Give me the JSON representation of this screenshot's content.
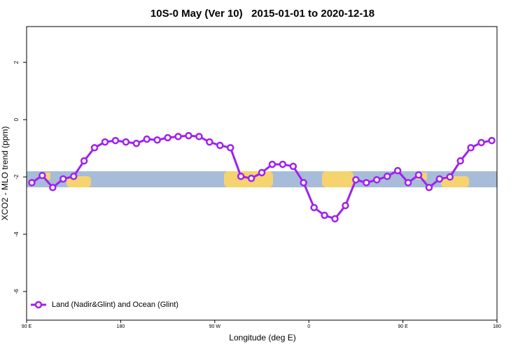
{
  "chart_data": {
    "type": "line",
    "title": "10S-0 May (Ver 10)   2015-01-01 to 2020-12-18",
    "xlabel": "Longitude (deg E)",
    "ylabel": "XCO2 - MLO trend (ppm)",
    "x": [
      95,
      105,
      115,
      125,
      135,
      145,
      155,
      165,
      175,
      185,
      195,
      205,
      215,
      225,
      235,
      245,
      255,
      265,
      275,
      285,
      295,
      305,
      315,
      325,
      335,
      345,
      355,
      365,
      375,
      385,
      395,
      405,
      415,
      425,
      435,
      445,
      455,
      465,
      475,
      485,
      495,
      505,
      515,
      525,
      535
    ],
    "series": [
      {
        "name": "Land (Nadir&Glint) and Ocean (Glint)",
        "color": "#a020f0",
        "values": [
          -2.2,
          -1.95,
          -2.37,
          -2.07,
          -1.98,
          -1.44,
          -0.98,
          -0.78,
          -0.73,
          -0.78,
          -0.83,
          -0.68,
          -0.71,
          -0.63,
          -0.59,
          -0.56,
          -0.59,
          -0.78,
          -0.9,
          -0.98,
          -1.98,
          -2.05,
          -1.85,
          -1.56,
          -1.56,
          -1.63,
          -2.2,
          -3.07,
          -3.34,
          -3.46,
          -3.0,
          -2.1,
          -2.2,
          -2.1,
          -1.98,
          -1.78,
          -2.2,
          -1.93,
          -2.37,
          -2.07,
          -2.0,
          -1.44,
          -0.98,
          -0.8,
          -0.73
        ]
      }
    ],
    "xlim": [
      90,
      540
    ],
    "xticks": [
      {
        "value": 90,
        "label": "90 E"
      },
      {
        "value": 180,
        "label": "180"
      },
      {
        "value": 270,
        "label": "90 W"
      },
      {
        "value": 360,
        "label": "0"
      },
      {
        "value": 450,
        "label": "90 E"
      },
      {
        "value": 540,
        "label": "180"
      }
    ],
    "ylim": [
      -7,
      3.25
    ],
    "yticks": [
      2,
      0,
      -2,
      -4,
      -6
    ],
    "legend": "bottom-left"
  }
}
